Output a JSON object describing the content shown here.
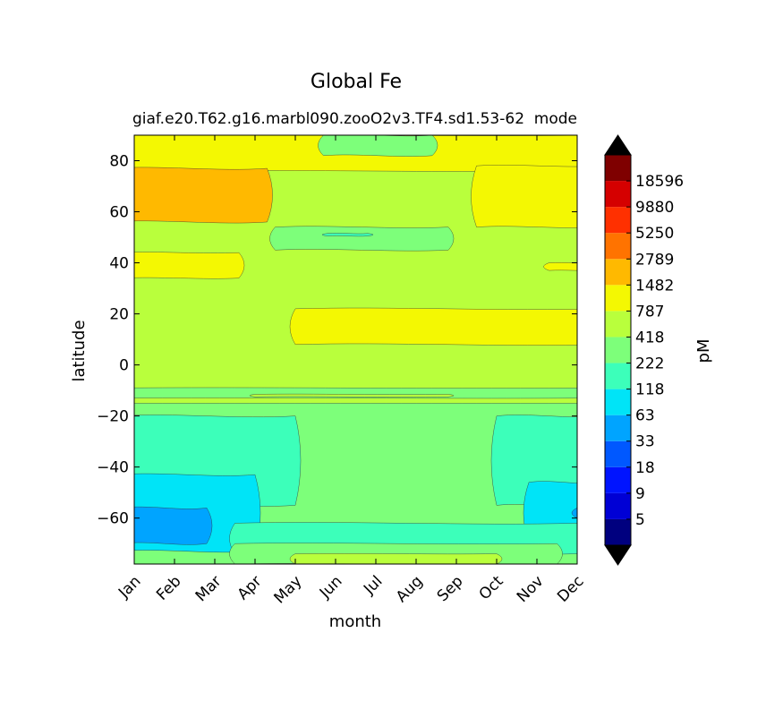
{
  "chart_data": {
    "type": "contourf",
    "title": "Global Fe",
    "subtitle_left": "giaf.e20.T62.g16.marbl090.zooO2v3.TF4.sd1.53-62",
    "subtitle_right": "mode",
    "xlabel": "month",
    "ylabel": "latitude",
    "colorbar_label": "pM",
    "x_categories": [
      "Jan",
      "Feb",
      "Mar",
      "Apr",
      "May",
      "Jun",
      "Jul",
      "Aug",
      "Sep",
      "Oct",
      "Nov",
      "Dec"
    ],
    "y_ticks": [
      80,
      60,
      40,
      20,
      0,
      -20,
      -40,
      -60
    ],
    "y_tick_labels": [
      "80",
      "60",
      "40",
      "20",
      "0",
      "−20",
      "−40",
      "−60"
    ],
    "ylim": [
      -78,
      90
    ],
    "levels": [
      5,
      9,
      18,
      33,
      63,
      118,
      222,
      418,
      787,
      1482,
      2789,
      5250,
      9880,
      18596
    ],
    "level_labels": [
      "5",
      "9",
      "18",
      "33",
      "63",
      "118",
      "222",
      "418",
      "787",
      "1482",
      "2789",
      "5250",
      "9880",
      "18596"
    ],
    "colormap": [
      "#00007f",
      "#0000d5",
      "#0014ff",
      "#0058ff",
      "#00a4ff",
      "#00e4f7",
      "#3cffba",
      "#7dff7a",
      "#b9ff3c",
      "#f4f802",
      "#ffb900",
      "#ff7300",
      "#ff3000",
      "#d50000",
      "#7f0000"
    ],
    "colorbar_extend": "both",
    "dominant_bands": [
      {
        "lat_range": [
          75,
          90
        ],
        "color_level": "787-1482",
        "note": "yellow, green-teal 418 patch Jul-Sep"
      },
      {
        "lat_range": [
          55,
          77
        ],
        "color_level": "1482-2789",
        "note": "orange Jan-Mar and Nov-Dec"
      },
      {
        "lat_range": [
          34,
          44
        ],
        "color_level": "787-1482",
        "note": "yellow Jan-Mar"
      },
      {
        "lat_range": [
          8,
          22
        ],
        "color_level": "787-1482",
        "note": "yellow Jun-Dec"
      },
      {
        "lat_range": [
          -50,
          -15
        ],
        "color_level": "222-418",
        "note": "light green/teal"
      },
      {
        "lat_range": [
          -72,
          -55
        ],
        "color_level": "33-63",
        "note": "blue Jan-Feb"
      },
      {
        "lat_range": [
          -78,
          -72
        ],
        "color_level": "418-787",
        "note": "green near Antarctic coast"
      }
    ]
  }
}
